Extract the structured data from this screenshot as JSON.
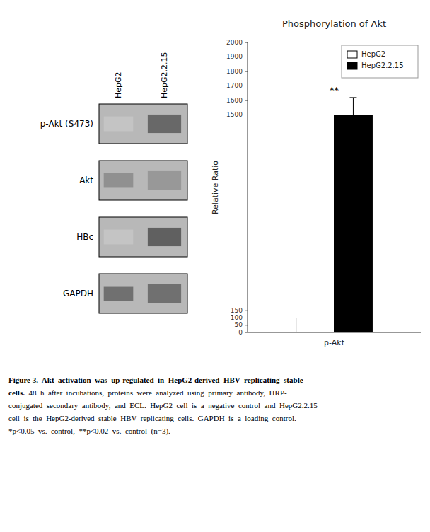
{
  "chart_data": [
    {
      "type": "bar",
      "title": "Phosphorylation of Akt",
      "categories": [
        "p-Akt"
      ],
      "series": [
        {
          "name": "HepG2",
          "color": "#ffffff",
          "values": [
            100
          ],
          "errors": [
            0
          ]
        },
        {
          "name": "HepG2.2.15",
          "color": "#000000",
          "values": [
            1500
          ],
          "errors": [
            120
          ]
        }
      ],
      "ylabel": "Relative Ratio",
      "ylim": [
        0,
        2000
      ],
      "yticks": [
        0,
        50,
        100,
        150,
        1500,
        1600,
        1700,
        1800,
        1900,
        2000
      ],
      "legend": "upper right",
      "annotations": [
        "**",
        "Figure 3.  Akt  activation  was  up-regulated  in  HepG2-derived  HBV  replicating  stable",
        "cells.",
        "  48  h  after  incubations,  proteins  were  analyzed  using  primary  antibody,  HRP-",
        "conjugated  secondary  antibody,  and  ECL.  HepG2  cell  is  a  negative  control  and  HepG2.2.15",
        "cell  is  the  HepG2-derived  stable  HBV  replicating  cells.  GAPDH  is  a  loading  control.",
        "*p<0.05  vs.  control,  **p<0.02  vs.  control  (n=3)."
      ]
    },
    {
      "type": "blot",
      "categories": [
        "p-Akt (S473)",
        "Akt",
        "HBc",
        "GAPDH"
      ],
      "color": "#b8b8b8",
      "series": [
        {
          "name": "HepG2",
          "colors": [
            "#d0d0d0",
            "#909090",
            "#e0e0e0",
            "#707070"
          ]
        },
        {
          "name": "HepG2.2.15",
          "colors": [
            "#686868",
            "#909090",
            "#606060",
            "#707070"
          ]
        }
      ]
    }
  ]
}
